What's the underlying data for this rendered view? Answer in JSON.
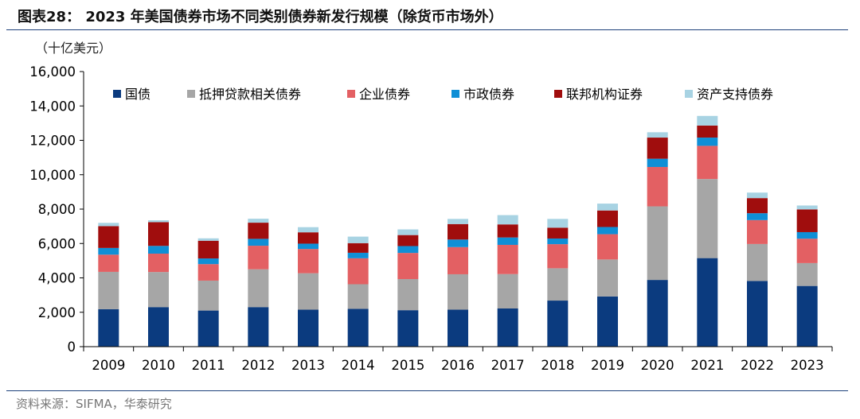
{
  "figure": {
    "title": "图表28： 2023 年美国债券市场不同类别债券新发行规模（除货币市场外）",
    "unit": "（十亿美元）",
    "source": "资料来源：SIFMA，华泰研究"
  },
  "colors": {
    "treasury": "#0b3b7f",
    "mbs": "#a6a6a6",
    "corporate": "#e36063",
    "municipal": "#0f8fd6",
    "agency": "#a00d0d",
    "abs": "#a8d3e3",
    "axis": "#000000",
    "rule": "#1c3f7a"
  },
  "chart_data": {
    "type": "bar",
    "stacked": true,
    "categories": [
      "2009",
      "2010",
      "2011",
      "2012",
      "2013",
      "2014",
      "2015",
      "2016",
      "2017",
      "2018",
      "2019",
      "2020",
      "2021",
      "2022",
      "2023"
    ],
    "ylim": [
      0,
      16000
    ],
    "yticks": [
      0,
      2000,
      4000,
      6000,
      8000,
      10000,
      12000,
      14000,
      16000
    ],
    "ytick_labels": [
      "0",
      "2,000",
      "4,000",
      "6,000",
      "8,000",
      "10,000",
      "12,000",
      "14,000",
      "16,000"
    ],
    "legend_position": "top",
    "grid": false,
    "series": [
      {
        "name": "国债",
        "color_key": "treasury",
        "values": [
          2180,
          2300,
          2100,
          2300,
          2150,
          2200,
          2120,
          2150,
          2220,
          2680,
          2920,
          3880,
          5150,
          3820,
          3530
        ]
      },
      {
        "name": "抵押贷款相关债券",
        "color_key": "mbs",
        "values": [
          2170,
          2040,
          1740,
          2200,
          2120,
          1430,
          1810,
          2060,
          2000,
          1880,
          2150,
          4280,
          4600,
          2150,
          1330
        ]
      },
      {
        "name": "企业债券",
        "color_key": "corporate",
        "values": [
          1000,
          1070,
          960,
          1370,
          1410,
          1510,
          1520,
          1580,
          1700,
          1400,
          1470,
          2290,
          1930,
          1390,
          1420
        ]
      },
      {
        "name": "市政债券",
        "color_key": "municipal",
        "values": [
          390,
          450,
          330,
          400,
          310,
          320,
          400,
          440,
          430,
          330,
          420,
          480,
          480,
          400,
          380
        ]
      },
      {
        "name": "联邦机构证券",
        "color_key": "agency",
        "values": [
          1270,
          1380,
          1030,
          940,
          660,
          560,
          640,
          900,
          760,
          630,
          960,
          1230,
          700,
          880,
          1320
        ]
      },
      {
        "name": "资产支持债券",
        "color_key": "abs",
        "values": [
          190,
          110,
          140,
          230,
          300,
          380,
          330,
          300,
          540,
          510,
          400,
          310,
          560,
          320,
          230
        ]
      }
    ]
  }
}
